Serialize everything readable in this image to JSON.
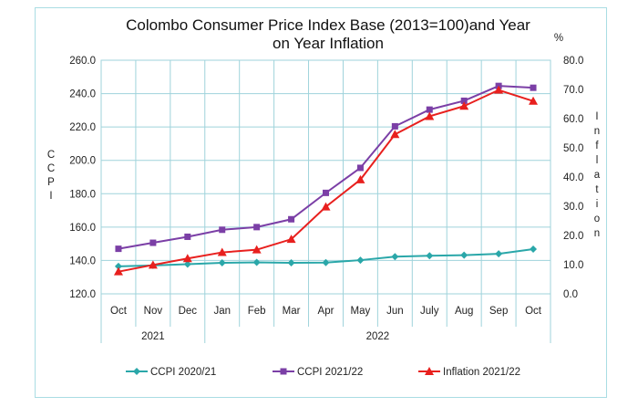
{
  "chart_data": {
    "type": "line",
    "title_lines": [
      "Colombo Consumer Price Index Base (2013=100)and Year",
      "on Year Inflation"
    ],
    "left_axis": {
      "label_letters": [
        "C",
        "C",
        "P",
        "I"
      ],
      "min": 120,
      "max": 260,
      "step": 20,
      "ticks": [
        "120.0",
        "140.0",
        "160.0",
        "180.0",
        "200.0",
        "220.0",
        "240.0",
        "260.0"
      ]
    },
    "right_axis": {
      "unit": "%",
      "label_letters": [
        "I",
        "n",
        "f",
        "l",
        "a",
        "t",
        "i",
        "o",
        "n"
      ],
      "min": 0,
      "max": 80,
      "step": 10,
      "ticks": [
        "0.0",
        "10.0",
        "20.0",
        "30.0",
        "40.0",
        "50.0",
        "60.0",
        "70.0",
        "80.0"
      ]
    },
    "categories": [
      "Oct",
      "Nov",
      "Dec",
      "Jan",
      "Feb",
      "Mar",
      "Apr",
      "May",
      "Jun",
      "July",
      "Aug",
      "Sep",
      "Oct"
    ],
    "year_groups": [
      {
        "label": "2021",
        "start": 0,
        "end": 2
      },
      {
        "label": "2022",
        "start": 3,
        "end": 12
      }
    ],
    "grid": true,
    "series": [
      {
        "name": "CCPI 2020/21",
        "axis": "left",
        "marker": "diamond",
        "color": "#2aa7a9",
        "values": [
          136.5,
          137.0,
          137.8,
          138.6,
          138.9,
          138.6,
          138.7,
          140.2,
          142.3,
          142.8,
          143.2,
          144.0,
          146.8
        ]
      },
      {
        "name": "CCPI 2021/22",
        "axis": "left",
        "marker": "square",
        "color": "#7b3fa6",
        "values": [
          147.0,
          150.6,
          154.2,
          158.4,
          160.0,
          164.7,
          180.5,
          195.5,
          220.4,
          230.4,
          235.7,
          244.6,
          243.5
        ]
      },
      {
        "name": "Inflation 2021/22",
        "axis": "right",
        "marker": "triangle",
        "color": "#e8201e",
        "values": [
          7.6,
          9.9,
          12.1,
          14.2,
          15.1,
          18.7,
          29.8,
          39.1,
          54.6,
          60.8,
          64.3,
          69.8,
          66.0
        ]
      }
    ],
    "legend_position": "bottom"
  }
}
